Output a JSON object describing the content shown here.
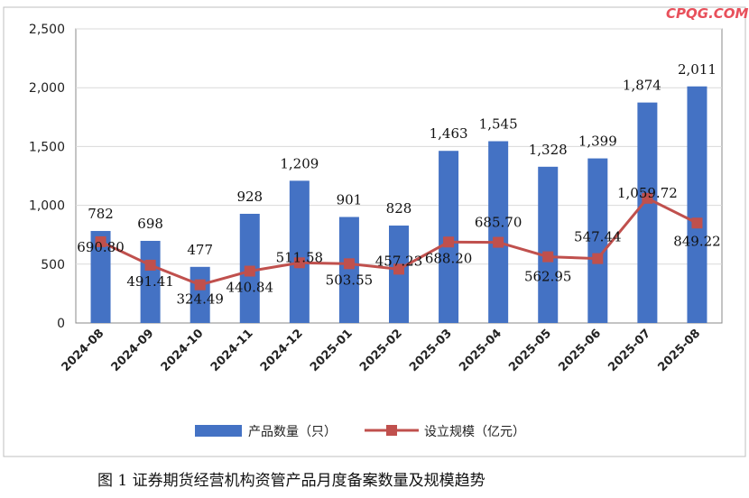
{
  "watermark": "CPQG.COM",
  "caption": "图 1   证券期货经营机构资管产品月度备案数量及规模趋势",
  "colors": {
    "bar": "#4472c4",
    "line": "#c0504d",
    "grid": "#d9d9d9",
    "axis": "#888888"
  },
  "chart_data": {
    "type": "bar",
    "categories": [
      "2024-08",
      "2024-09",
      "2024-10",
      "2024-11",
      "2024-12",
      "2025-01",
      "2025-02",
      "2025-03",
      "2025-04",
      "2025-05",
      "2025-06",
      "2025-07",
      "2025-08"
    ],
    "ylim": [
      0,
      2500
    ],
    "yticks": [
      "0",
      "500",
      "1,000",
      "1,500",
      "2,000",
      "2,500"
    ],
    "ytick_values": [
      0,
      500,
      1000,
      1500,
      2000,
      2500
    ],
    "grid": true,
    "legend_position": "bottom",
    "series": [
      {
        "name": "产品数量（只）",
        "type": "bar",
        "values": [
          782,
          698,
          477,
          928,
          1209,
          901,
          828,
          1463,
          1545,
          1328,
          1399,
          1874,
          2011
        ],
        "labels": [
          "782",
          "698",
          "477",
          "928",
          "1,209",
          "901",
          "828",
          "1,463",
          "1,545",
          "1,328",
          "1,399",
          "1,874",
          "2,011"
        ]
      },
      {
        "name": "设立规模（亿元）",
        "type": "line",
        "values": [
          690.8,
          491.41,
          324.49,
          440.84,
          511.58,
          503.55,
          457.23,
          688.2,
          685.7,
          562.95,
          547.44,
          1059.72,
          849.22
        ],
        "labels": [
          "690.80",
          "491.41",
          "324.49",
          "440.84",
          "511.58",
          "503.55",
          "457.23",
          "688.20",
          "685.70",
          "562.95",
          "547.44",
          "1,059.72",
          "849.22"
        ]
      }
    ]
  }
}
